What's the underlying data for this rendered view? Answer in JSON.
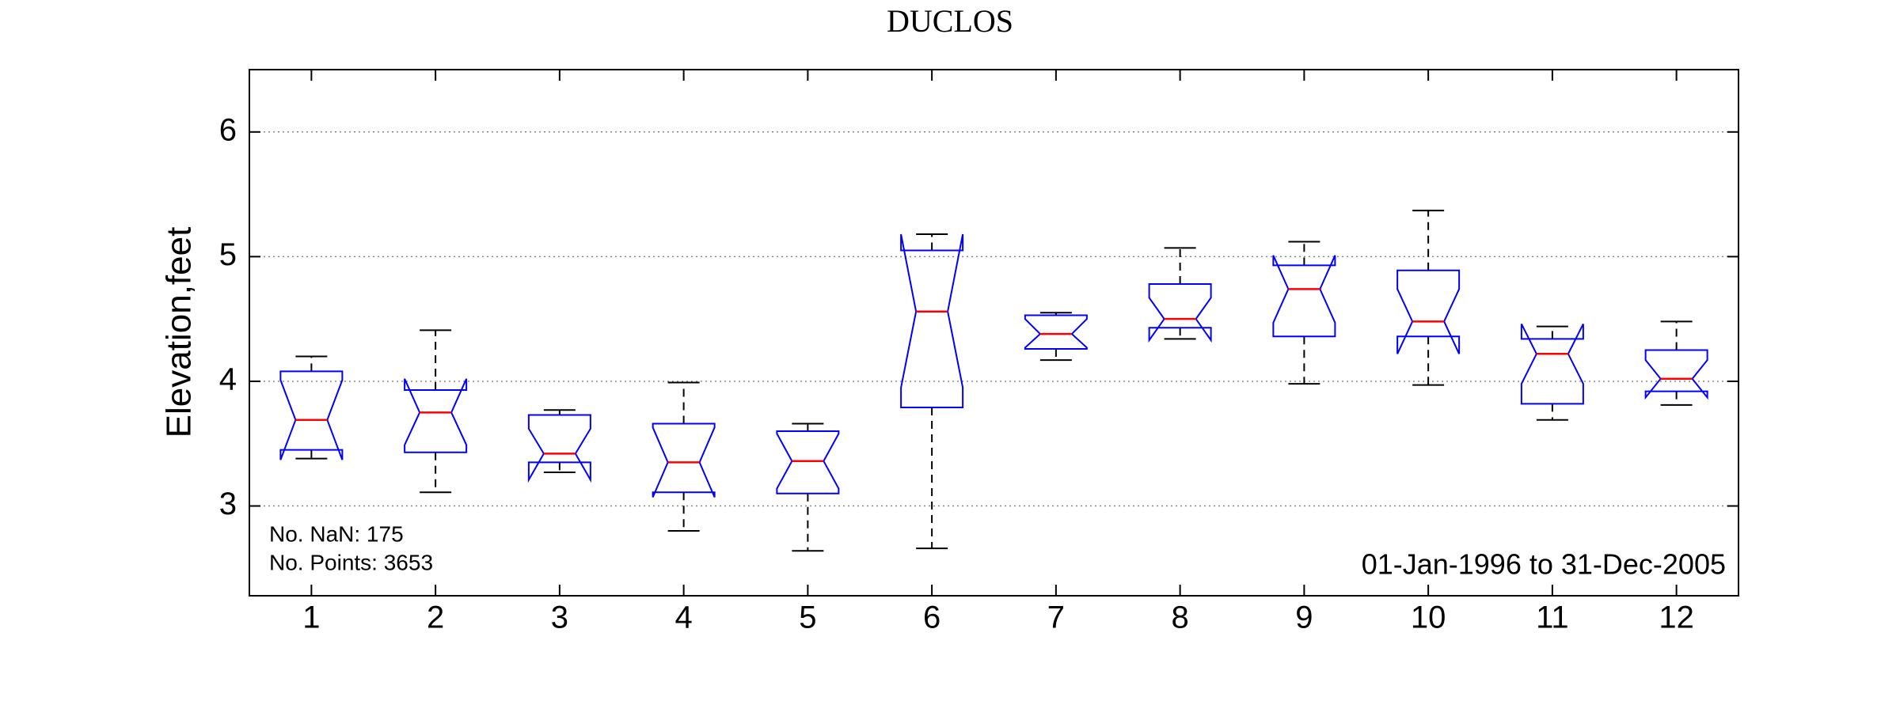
{
  "chart_data": {
    "type": "box",
    "title": "DUCLOS",
    "ylabel": "Elevation,feet",
    "annotations": [
      "No. NaN: 175",
      "No. Points: 3653",
      "01-Jan-1996 to 31-Dec-2005"
    ],
    "categories": [
      1,
      2,
      3,
      4,
      5,
      6,
      7,
      8,
      9,
      10,
      11,
      12
    ],
    "whisker_low": [
      3.38,
      3.11,
      3.27,
      2.8,
      2.64,
      2.66,
      4.17,
      4.34,
      3.98,
      3.97,
      3.69,
      3.81
    ],
    "q1": [
      3.45,
      3.43,
      3.35,
      3.11,
      3.1,
      3.79,
      4.26,
      4.43,
      4.36,
      4.36,
      3.82,
      3.92
    ],
    "median": [
      3.69,
      3.75,
      3.42,
      3.35,
      3.36,
      4.56,
      4.38,
      4.5,
      4.74,
      4.48,
      4.22,
      4.02
    ],
    "q3": [
      4.08,
      3.93,
      3.73,
      3.66,
      3.6,
      5.05,
      4.53,
      4.78,
      4.93,
      4.89,
      4.34,
      4.25
    ],
    "whisker_high": [
      4.2,
      4.41,
      3.77,
      3.99,
      3.66,
      5.18,
      4.55,
      5.07,
      5.12,
      5.37,
      4.44,
      4.48
    ],
    "notch_low": [
      3.37,
      3.49,
      3.21,
      3.07,
      3.14,
      3.95,
      4.27,
      4.33,
      4.47,
      4.22,
      3.98,
      3.87
    ],
    "notch_high": [
      4.01,
      4.02,
      3.62,
      3.63,
      3.58,
      5.18,
      4.5,
      4.67,
      5.01,
      4.74,
      4.46,
      4.17
    ],
    "box_color": "#0000ff",
    "median_color": "#ff0000",
    "whisker_color": "#000000",
    "ylim": [
      2.28,
      6.5
    ],
    "yticks": [
      3,
      4,
      5,
      6
    ],
    "grid": true
  }
}
